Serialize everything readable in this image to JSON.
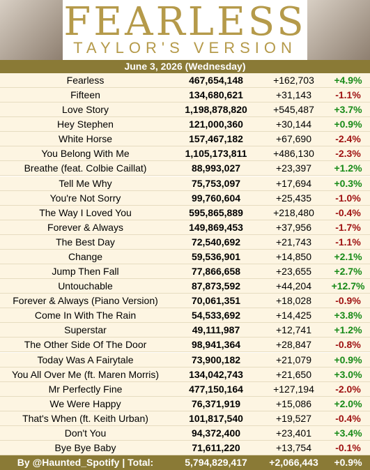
{
  "header": {
    "title": "FEARLESS",
    "subtitle": "TAYLOR'S VERSION",
    "date": "June 3, 2026 (Wednesday)"
  },
  "table": {
    "rows": [
      [
        "Fearless",
        "467,654,148",
        "+162,703",
        "+4.9%"
      ],
      [
        "Fifteen",
        "134,680,621",
        "+31,143",
        "-1.1%"
      ],
      [
        "Love Story",
        "1,198,878,820",
        "+545,487",
        "+3.7%"
      ],
      [
        "Hey Stephen",
        "121,000,360",
        "+30,144",
        "+0.9%"
      ],
      [
        "White Horse",
        "157,467,182",
        "+67,690",
        "-2.4%"
      ],
      [
        "You Belong With Me",
        "1,105,173,811",
        "+486,130",
        "-2.3%"
      ],
      [
        "Breathe (feat. Colbie Caillat)",
        "88,993,027",
        "+23,397",
        "+1.2%"
      ],
      [
        "Tell Me Why",
        "75,753,097",
        "+17,694",
        "+0.3%"
      ],
      [
        "You're Not Sorry",
        "99,760,604",
        "+25,435",
        "-1.0%"
      ],
      [
        "The Way I Loved You",
        "595,865,889",
        "+218,480",
        "-0.4%"
      ],
      [
        "Forever & Always",
        "149,869,453",
        "+37,956",
        "-1.7%"
      ],
      [
        "The Best Day",
        "72,540,692",
        "+21,743",
        "-1.1%"
      ],
      [
        "Change",
        "59,536,901",
        "+14,850",
        "+2.1%"
      ],
      [
        "Jump Then Fall",
        "77,866,658",
        "+23,655",
        "+2.7%"
      ],
      [
        "Untouchable",
        "87,873,592",
        "+44,204",
        "+12.7%"
      ],
      [
        "Forever & Always (Piano Version)",
        "70,061,351",
        "+18,028",
        "-0.9%"
      ],
      [
        "Come In With The Rain",
        "54,533,692",
        "+14,425",
        "+3.8%"
      ],
      [
        "Superstar",
        "49,111,987",
        "+12,741",
        "+1.2%"
      ],
      [
        "The Other Side Of The Door",
        "98,941,364",
        "+28,847",
        "-0.8%"
      ],
      [
        "Today Was A Fairytale",
        "73,900,182",
        "+21,079",
        "+0.9%"
      ],
      [
        "You All Over Me (ft. Maren Morris)",
        "134,042,743",
        "+21,650",
        "+3.0%"
      ],
      [
        "Mr Perfectly Fine",
        "477,150,164",
        "+127,194",
        "-2.0%"
      ],
      [
        "We Were Happy",
        "76,371,919",
        "+15,086",
        "+2.0%"
      ],
      [
        "That's When (ft. Keith Urban)",
        "101,817,540",
        "+19,527",
        "-0.4%"
      ],
      [
        "Don't You",
        "94,372,400",
        "+23,401",
        "+3.4%"
      ],
      [
        "Bye Bye Baby",
        "71,611,220",
        "+13,754",
        "-0.1%"
      ]
    ],
    "footer": [
      "By @Haunted_Spotify | Total:",
      "5,794,829,417",
      "+2,066,443",
      "+0.9%"
    ]
  }
}
